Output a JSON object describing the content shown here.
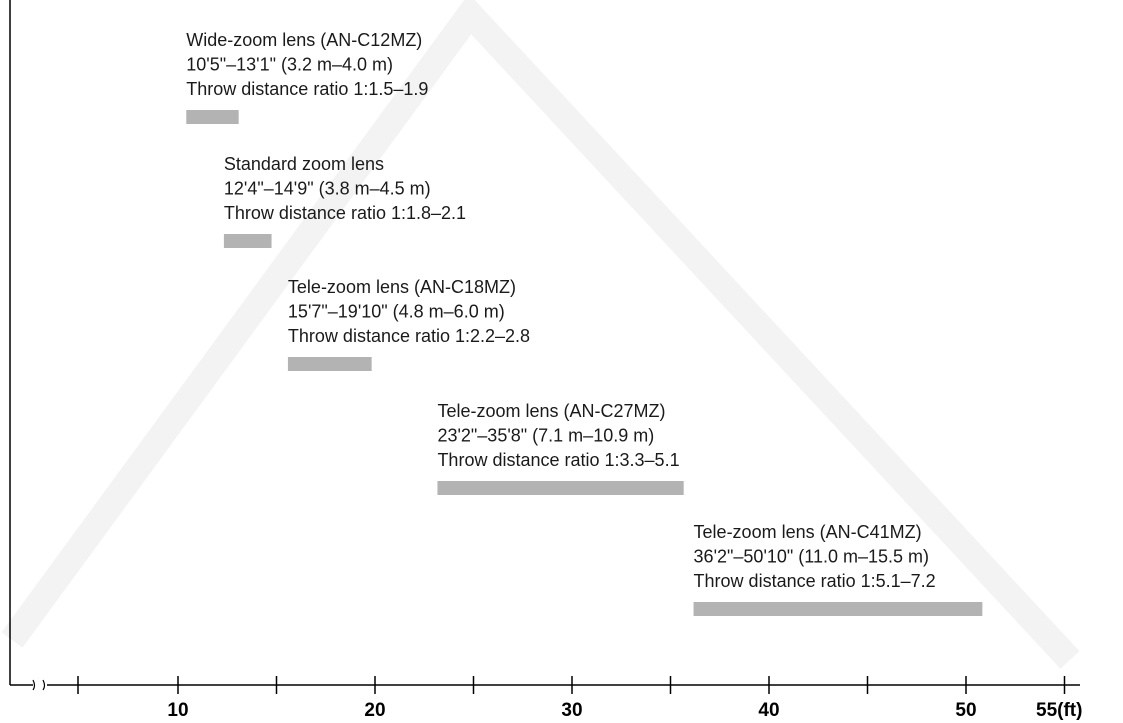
{
  "chart_data": {
    "type": "bar",
    "orientation": "horizontal-range",
    "x_axis": {
      "unit": "ft",
      "ticks": [
        10,
        20,
        30,
        40,
        50
      ],
      "tick_labels": [
        "10",
        "20",
        "30",
        "40",
        "50"
      ],
      "end_label": "55(ft)",
      "minor_ticks": [
        5,
        15,
        25,
        35,
        45
      ],
      "axis_break": true,
      "xlim": [
        5,
        55
      ]
    },
    "series": [
      {
        "start_ft": 10.42,
        "end_ft": 13.08,
        "lines": [
          "Wide-zoom lens (AN-C12MZ)",
          "10'5\"–13'1\" (3.2 m–4.0 m)",
          "Throw distance ratio 1:1.5–1.9"
        ]
      },
      {
        "start_ft": 12.33,
        "end_ft": 14.75,
        "lines": [
          "Standard zoom lens",
          "12'4\"–14'9\" (3.8 m–4.5 m)",
          "Throw distance ratio 1:1.8–2.1"
        ]
      },
      {
        "start_ft": 15.58,
        "end_ft": 19.83,
        "lines": [
          "Tele-zoom lens (AN-C18MZ)",
          "15'7\"–19'10\" (4.8 m–6.0 m)",
          "Throw distance ratio 1:2.2–2.8"
        ]
      },
      {
        "start_ft": 23.17,
        "end_ft": 35.67,
        "lines": [
          "Tele-zoom lens (AN-C27MZ)",
          "23'2\"–35'8\" (7.1 m–10.9 m)",
          "Throw distance ratio 1:3.3–5.1"
        ]
      },
      {
        "start_ft": 36.17,
        "end_ft": 50.83,
        "lines": [
          "Tele-zoom lens (AN-C41MZ)",
          "36'2\"–50'10\" (11.0 m–15.5 m)",
          "Throw distance ratio 1:5.1–7.2"
        ]
      }
    ],
    "colors": {
      "bar": "#b3b3b3",
      "axis": "#000000",
      "text": "#1a1a1a",
      "watermark": "#f3f3f3"
    },
    "grid": false,
    "legend": "none"
  }
}
